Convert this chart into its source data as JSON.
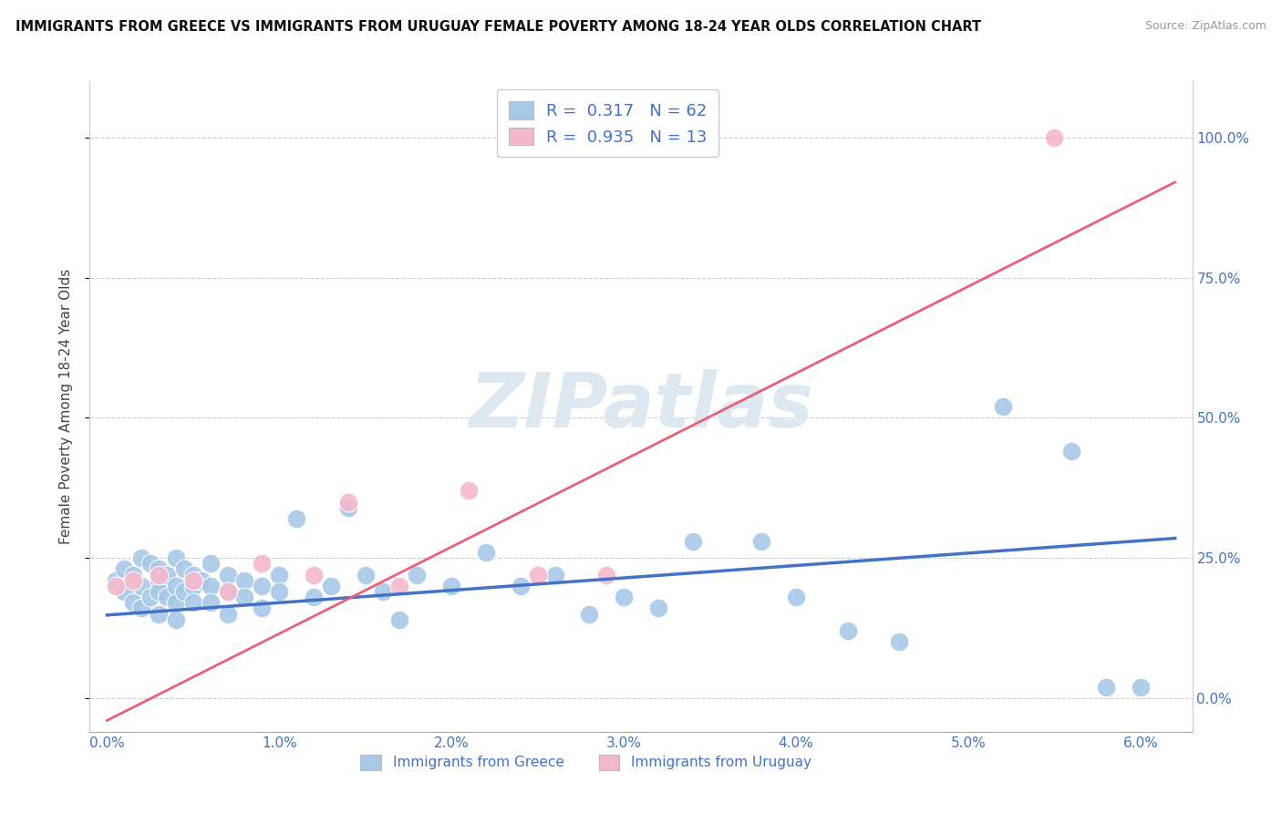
{
  "title": "IMMIGRANTS FROM GREECE VS IMMIGRANTS FROM URUGUAY FEMALE POVERTY AMONG 18-24 YEAR OLDS CORRELATION CHART",
  "source": "Source: ZipAtlas.com",
  "xlabel_ticks": [
    "0.0%",
    "1.0%",
    "2.0%",
    "3.0%",
    "4.0%",
    "5.0%",
    "6.0%"
  ],
  "xlabel_vals": [
    0.0,
    0.01,
    0.02,
    0.03,
    0.04,
    0.05,
    0.06
  ],
  "ylabel": "Female Poverty Among 18-24 Year Olds",
  "ylabel_ticks": [
    "0.0%",
    "25.0%",
    "50.0%",
    "75.0%",
    "100.0%"
  ],
  "ylabel_vals": [
    0.0,
    0.25,
    0.5,
    0.75,
    1.0
  ],
  "xlim": [
    -0.001,
    0.063
  ],
  "ylim": [
    -0.06,
    1.1
  ],
  "greece_R": "0.317",
  "greece_N": "62",
  "uruguay_R": "0.935",
  "uruguay_N": "13",
  "greece_color": "#a8c8e8",
  "greece_line_color": "#4472c4",
  "uruguay_color": "#f4b8cc",
  "uruguay_line_color": "#e8607a",
  "watermark_color": "#dde8f0",
  "greece_scatter_x": [
    0.0005,
    0.001,
    0.001,
    0.0015,
    0.0015,
    0.002,
    0.002,
    0.002,
    0.0025,
    0.0025,
    0.003,
    0.003,
    0.003,
    0.003,
    0.0035,
    0.0035,
    0.004,
    0.004,
    0.004,
    0.004,
    0.0045,
    0.0045,
    0.005,
    0.005,
    0.005,
    0.0055,
    0.006,
    0.006,
    0.006,
    0.007,
    0.007,
    0.007,
    0.008,
    0.008,
    0.009,
    0.009,
    0.01,
    0.01,
    0.011,
    0.012,
    0.013,
    0.014,
    0.015,
    0.016,
    0.017,
    0.018,
    0.02,
    0.022,
    0.024,
    0.026,
    0.028,
    0.03,
    0.032,
    0.034,
    0.038,
    0.04,
    0.043,
    0.046,
    0.052,
    0.056,
    0.058,
    0.06
  ],
  "greece_scatter_y": [
    0.21,
    0.23,
    0.19,
    0.22,
    0.17,
    0.25,
    0.2,
    0.16,
    0.24,
    0.18,
    0.21,
    0.19,
    0.23,
    0.15,
    0.22,
    0.18,
    0.25,
    0.2,
    0.17,
    0.14,
    0.23,
    0.19,
    0.22,
    0.2,
    0.17,
    0.21,
    0.24,
    0.2,
    0.17,
    0.22,
    0.19,
    0.15,
    0.21,
    0.18,
    0.2,
    0.16,
    0.22,
    0.19,
    0.32,
    0.18,
    0.2,
    0.34,
    0.22,
    0.19,
    0.14,
    0.22,
    0.2,
    0.26,
    0.2,
    0.22,
    0.15,
    0.18,
    0.16,
    0.28,
    0.28,
    0.18,
    0.12,
    0.1,
    0.52,
    0.44,
    0.02,
    0.02
  ],
  "uruguay_scatter_x": [
    0.0005,
    0.0015,
    0.003,
    0.005,
    0.007,
    0.009,
    0.012,
    0.014,
    0.017,
    0.021,
    0.025,
    0.029,
    0.055
  ],
  "uruguay_scatter_y": [
    0.2,
    0.21,
    0.22,
    0.21,
    0.19,
    0.24,
    0.22,
    0.35,
    0.2,
    0.37,
    0.22,
    0.22,
    1.0
  ],
  "legend_label_greece": "Immigrants from Greece",
  "legend_label_uruguay": "Immigrants from Uruguay",
  "greece_regline_x": [
    0.0,
    0.062
  ],
  "greece_regline_y": [
    0.148,
    0.285
  ],
  "uruguay_regline_x": [
    0.0,
    0.062
  ],
  "uruguay_regline_y": [
    -0.04,
    0.92
  ]
}
